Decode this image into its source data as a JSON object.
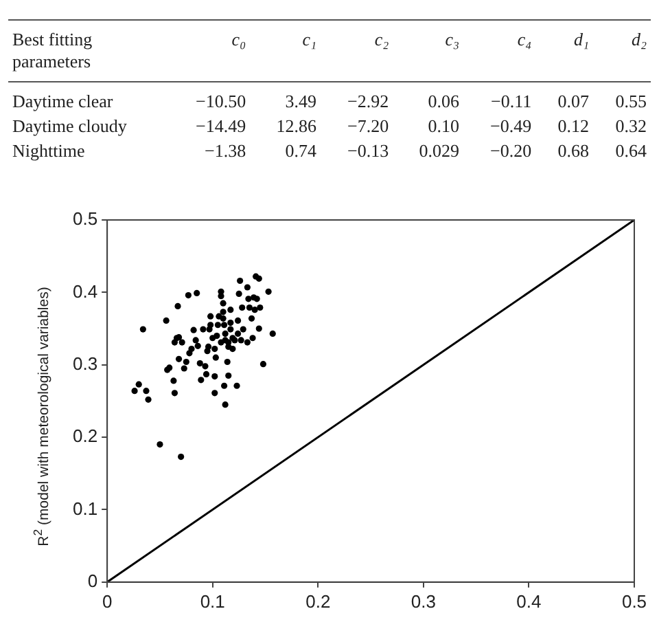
{
  "chart_data": [
    {
      "type": "other",
      "annotations": [
        "Best fitting parameters",
        "c₀",
        "c₁",
        "c₂",
        "c₃",
        "c₄",
        "d₁",
        "d₂",
        "Daytime clear",
        "−10.50",
        "3.49",
        "−2.92",
        "0.06",
        "−0.11",
        "0.07",
        "0.55",
        "Daytime cloudy",
        "−14.49",
        "12.86",
        "−7.20",
        "0.10",
        "−0.49",
        "0.12",
        "0.32",
        "Nighttime",
        "−1.38",
        "0.74",
        "−0.13",
        "0.029",
        "−0.20",
        "0.68",
        "0.64"
      ]
    },
    {
      "type": "scatter",
      "ylabel": "R$^{2}$ (model with meteorological variables)",
      "xlim": [
        0,
        0.5
      ],
      "ylim": [
        0,
        0.5
      ],
      "xticks": [
        0,
        0.1,
        0.2,
        0.3,
        0.4,
        0.5
      ],
      "yticks": [
        0,
        0.1,
        0.2,
        0.3,
        0.4,
        0.5
      ],
      "grid": false,
      "legend": false,
      "series": [
        {
          "type": "scatter",
          "marker": "circle",
          "color": "#000000",
          "x": [
            0.034,
            0.026,
            0.03,
            0.037,
            0.039,
            0.056,
            0.067,
            0.077,
            0.085,
            0.057,
            0.059,
            0.063,
            0.064,
            0.064,
            0.066,
            0.068,
            0.071,
            0.068,
            0.073,
            0.075,
            0.078,
            0.08,
            0.082,
            0.084,
            0.086,
            0.088,
            0.089,
            0.093,
            0.094,
            0.095,
            0.097,
            0.098,
            0.098,
            0.1,
            0.102,
            0.102,
            0.103,
            0.104,
            0.105,
            0.106,
            0.108,
            0.108,
            0.11,
            0.11,
            0.111,
            0.112,
            0.112,
            0.111,
            0.112,
            0.114,
            0.115,
            0.115,
            0.117,
            0.117,
            0.119,
            0.121,
            0.123,
            0.124,
            0.125,
            0.126,
            0.127,
            0.128,
            0.129,
            0.133,
            0.134,
            0.135,
            0.137,
            0.138,
            0.139,
            0.14,
            0.141,
            0.142,
            0.144,
            0.145,
            0.144,
            0.148,
            0.153,
            0.157,
            0.133,
            0.119,
            0.115,
            0.108,
            0.102,
            0.096,
            0.091,
            0.117,
            0.11,
            0.124,
            0.05,
            0.07
          ],
          "values": [
            0.349,
            0.264,
            0.273,
            0.264,
            0.252,
            0.361,
            0.381,
            0.396,
            0.399,
            0.293,
            0.296,
            0.278,
            0.261,
            0.331,
            0.337,
            0.338,
            0.331,
            0.308,
            0.295,
            0.304,
            0.316,
            0.322,
            0.348,
            0.334,
            0.326,
            0.302,
            0.279,
            0.298,
            0.287,
            0.319,
            0.349,
            0.367,
            0.355,
            0.337,
            0.284,
            0.261,
            0.31,
            0.34,
            0.355,
            0.367,
            0.395,
            0.401,
            0.385,
            0.373,
            0.355,
            0.343,
            0.334,
            0.271,
            0.245,
            0.304,
            0.285,
            0.331,
            0.349,
            0.376,
            0.337,
            0.334,
            0.271,
            0.361,
            0.398,
            0.416,
            0.334,
            0.379,
            0.349,
            0.407,
            0.391,
            0.379,
            0.364,
            0.337,
            0.393,
            0.376,
            0.422,
            0.391,
            0.419,
            0.379,
            0.35,
            0.301,
            0.401,
            0.343,
            0.331,
            0.322,
            0.325,
            0.331,
            0.322,
            0.325,
            0.349,
            0.358,
            0.364,
            0.343,
            0.19,
            0.173
          ]
        },
        {
          "type": "line",
          "marker": "none",
          "color": "#000000",
          "x": [
            0,
            0.5
          ],
          "values": [
            0,
            0.5
          ]
        }
      ]
    }
  ]
}
